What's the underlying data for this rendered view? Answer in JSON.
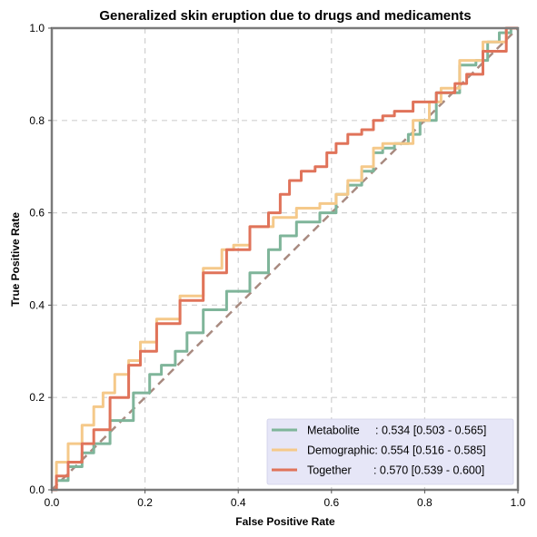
{
  "chart_data": {
    "type": "line",
    "title": "Generalized skin eruption due to drugs and medicaments",
    "xlabel": "False Positive Rate",
    "ylabel": "True Positive Rate",
    "xlim": [
      0,
      1
    ],
    "ylim": [
      0,
      1
    ],
    "xticks": [
      "0.0",
      "0.2",
      "0.4",
      "0.6",
      "0.8",
      "1.0"
    ],
    "yticks": [
      "0.0",
      "0.2",
      "0.4",
      "0.6",
      "0.8",
      "1.0"
    ],
    "grid": true,
    "legend_position": "bottom-right",
    "series": [
      {
        "name": "Metabolite",
        "legend_label": "Metabolite     : 0.534 [0.503 - 0.565]",
        "color": "#7fb59a",
        "x": [
          0,
          0.02,
          0.05,
          0.08,
          0.1,
          0.15,
          0.2,
          0.22,
          0.25,
          0.28,
          0.3,
          0.35,
          0.4,
          0.45,
          0.48,
          0.5,
          0.55,
          0.6,
          0.62,
          0.65,
          0.68,
          0.7,
          0.72,
          0.75,
          0.78,
          0.8,
          0.85,
          0.9,
          0.92,
          0.95,
          0.97,
          1.0
        ],
        "y": [
          0,
          0.02,
          0.05,
          0.08,
          0.1,
          0.15,
          0.21,
          0.25,
          0.27,
          0.3,
          0.34,
          0.39,
          0.43,
          0.47,
          0.52,
          0.55,
          0.58,
          0.6,
          0.64,
          0.66,
          0.69,
          0.73,
          0.74,
          0.75,
          0.77,
          0.8,
          0.86,
          0.92,
          0.93,
          0.97,
          0.99,
          1.0
        ]
      },
      {
        "name": "Demographic",
        "legend_label": "Demographic: 0.554 [0.516 - 0.585]",
        "color": "#f5c98a",
        "x": [
          0,
          0.02,
          0.05,
          0.08,
          0.1,
          0.12,
          0.15,
          0.18,
          0.2,
          0.25,
          0.3,
          0.35,
          0.38,
          0.4,
          0.45,
          0.5,
          0.55,
          0.6,
          0.62,
          0.65,
          0.68,
          0.7,
          0.72,
          0.75,
          0.8,
          0.82,
          0.85,
          0.9,
          0.95,
          1.0
        ],
        "y": [
          0,
          0.06,
          0.1,
          0.14,
          0.18,
          0.21,
          0.25,
          0.28,
          0.32,
          0.37,
          0.42,
          0.48,
          0.52,
          0.53,
          0.57,
          0.59,
          0.61,
          0.62,
          0.64,
          0.67,
          0.7,
          0.74,
          0.75,
          0.75,
          0.8,
          0.84,
          0.87,
          0.93,
          0.97,
          1.0
        ]
      },
      {
        "name": "Together",
        "legend_label": "Together       : 0.570 [0.539 - 0.600]",
        "color": "#e0735a",
        "x": [
          0,
          0.02,
          0.05,
          0.08,
          0.1,
          0.15,
          0.18,
          0.2,
          0.25,
          0.3,
          0.35,
          0.4,
          0.45,
          0.48,
          0.5,
          0.52,
          0.55,
          0.58,
          0.6,
          0.62,
          0.65,
          0.68,
          0.7,
          0.72,
          0.75,
          0.8,
          0.85,
          0.88,
          0.9,
          0.95,
          1.0
        ],
        "y": [
          0,
          0.03,
          0.06,
          0.1,
          0.13,
          0.2,
          0.27,
          0.3,
          0.36,
          0.41,
          0.47,
          0.52,
          0.57,
          0.6,
          0.64,
          0.67,
          0.69,
          0.7,
          0.73,
          0.75,
          0.77,
          0.78,
          0.8,
          0.81,
          0.82,
          0.84,
          0.86,
          0.88,
          0.9,
          0.95,
          1.0
        ]
      }
    ],
    "diagonal": {
      "x": [
        0,
        1
      ],
      "y": [
        0,
        1
      ],
      "color": "#a88a80",
      "style": "dashed"
    }
  }
}
